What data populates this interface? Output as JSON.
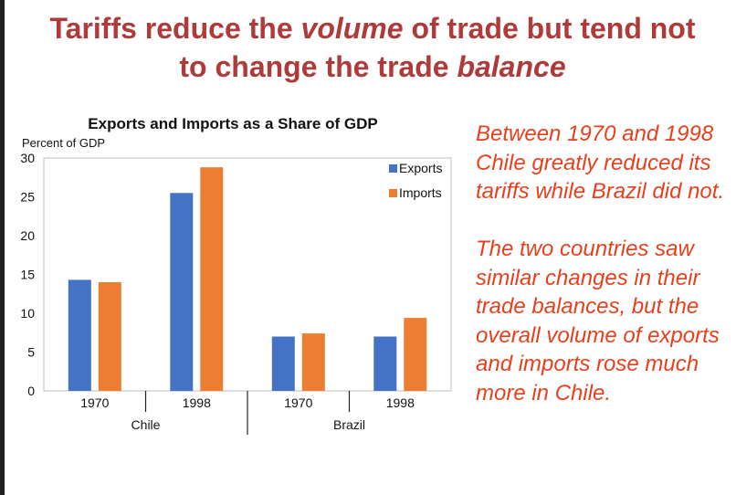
{
  "slide": {
    "title_part1": "Tariffs reduce the ",
    "title_em1": "volume",
    "title_part2": " of trade but tend not",
    "title_part3": "to change the trade ",
    "title_em2": "balance"
  },
  "chart_data": {
    "type": "bar",
    "title": "Exports and Imports as a Share of GDP",
    "ylabel": "Percent of GDP",
    "ylim": [
      0,
      30
    ],
    "yticks": [
      0,
      5,
      10,
      15,
      20,
      25,
      30
    ],
    "categories": [
      "1970",
      "1998",
      "1970",
      "1998"
    ],
    "groups": [
      {
        "label": "Chile",
        "categories": [
          "1970",
          "1998"
        ]
      },
      {
        "label": "Brazil",
        "categories": [
          "1970",
          "1998"
        ]
      }
    ],
    "series": [
      {
        "name": "Exports",
        "color": "#4472c4",
        "values": [
          14.3,
          25.5,
          7.0,
          7.0
        ]
      },
      {
        "name": "Imports",
        "color": "#ed7d31",
        "values": [
          14.0,
          28.8,
          7.4,
          9.4
        ]
      }
    ],
    "legend_position": "top-right",
    "grid": false
  },
  "side_text": {
    "paragraph1": "Between 1970 and 1998 Chile greatly reduced its tariffs while Brazil did not.",
    "paragraph2": "The two countries saw similar changes in their trade balances, but the overall volume of exports and imports rose much more in Chile."
  }
}
